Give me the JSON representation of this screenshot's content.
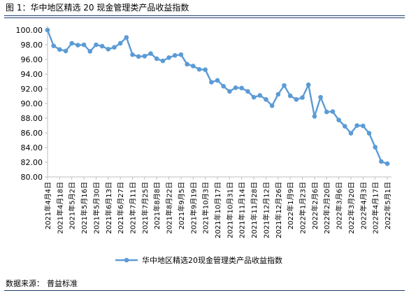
{
  "figure": {
    "title": "图 1：华中地区精选 20 现金管理类产品收益指数",
    "source_label": "数据来源：",
    "source_value": "普益标准"
  },
  "colors": {
    "line": "#5b9bd5",
    "rule": "#1f3b6e",
    "axis": "#bfbfbf",
    "text": "#000000"
  },
  "chart_data": {
    "type": "line",
    "title": "",
    "xlabel": "",
    "ylabel": "",
    "ylim": [
      80,
      100
    ],
    "yticks": [
      "80.00",
      "82.00",
      "84.00",
      "86.00",
      "88.00",
      "90.00",
      "92.00",
      "94.00",
      "96.00",
      "98.00",
      "100.00"
    ],
    "grid": false,
    "legend_position": "bottom",
    "x_tick_labels": [
      "2021年4月4日",
      "2021年4月18日",
      "2021年5月2日",
      "2021年5月16日",
      "2021年5月30日",
      "2021年6月13日",
      "2021年6月27日",
      "2021年7月11日",
      "2021年7月25日",
      "2021年8月8日",
      "2021年8月22日",
      "2021年9月5日",
      "2021年9月19日",
      "2021年10月3日",
      "2021年10月17日",
      "2021年10月31日",
      "2021年11月14日",
      "2021年11月28日",
      "2021年12月12日",
      "2021年12月26日",
      "2022年1月9日",
      "2022年1月23日",
      "2022年2月6日",
      "2022年2月20日",
      "2022年3月6日",
      "2022年3月20日",
      "2022年4月3日",
      "2022年4月17日",
      "2022年5月1日"
    ],
    "x": [
      "2021-04-04",
      "2021-04-11",
      "2021-04-18",
      "2021-04-25",
      "2021-05-02",
      "2021-05-09",
      "2021-05-16",
      "2021-05-23",
      "2021-05-30",
      "2021-06-06",
      "2021-06-13",
      "2021-06-20",
      "2021-06-27",
      "2021-07-04",
      "2021-07-11",
      "2021-07-18",
      "2021-07-25",
      "2021-08-01",
      "2021-08-08",
      "2021-08-15",
      "2021-08-22",
      "2021-08-29",
      "2021-09-05",
      "2021-09-12",
      "2021-09-19",
      "2021-09-26",
      "2021-10-03",
      "2021-10-10",
      "2021-10-17",
      "2021-10-24",
      "2021-10-31",
      "2021-11-07",
      "2021-11-14",
      "2021-11-21",
      "2021-11-28",
      "2021-12-05",
      "2021-12-12",
      "2021-12-19",
      "2021-12-26",
      "2022-01-02",
      "2022-01-09",
      "2022-01-16",
      "2022-01-23",
      "2022-01-30",
      "2022-02-06",
      "2022-02-13",
      "2022-02-20",
      "2022-02-27",
      "2022-03-06",
      "2022-03-13",
      "2022-03-20",
      "2022-03-27",
      "2022-04-03",
      "2022-04-10",
      "2022-04-17",
      "2022-04-24",
      "2022-05-01"
    ],
    "series": [
      {
        "name": "华中地区精选20现金管理类产品收益指数",
        "values": [
          100.0,
          97.85,
          97.35,
          97.15,
          98.2,
          97.95,
          98.0,
          97.1,
          98.0,
          97.8,
          97.4,
          97.65,
          98.2,
          99.0,
          96.65,
          96.4,
          96.45,
          96.8,
          96.1,
          95.8,
          96.25,
          96.55,
          96.65,
          95.35,
          95.1,
          94.65,
          94.6,
          92.9,
          93.15,
          92.35,
          91.65,
          92.15,
          92.1,
          91.65,
          90.85,
          91.1,
          90.55,
          89.7,
          91.25,
          92.45,
          91.05,
          90.55,
          90.8,
          92.55,
          88.25,
          90.85,
          88.85,
          88.9,
          87.75,
          86.9,
          85.95,
          87.0,
          86.95,
          85.95,
          84.05,
          82.1,
          81.8
        ]
      }
    ]
  }
}
